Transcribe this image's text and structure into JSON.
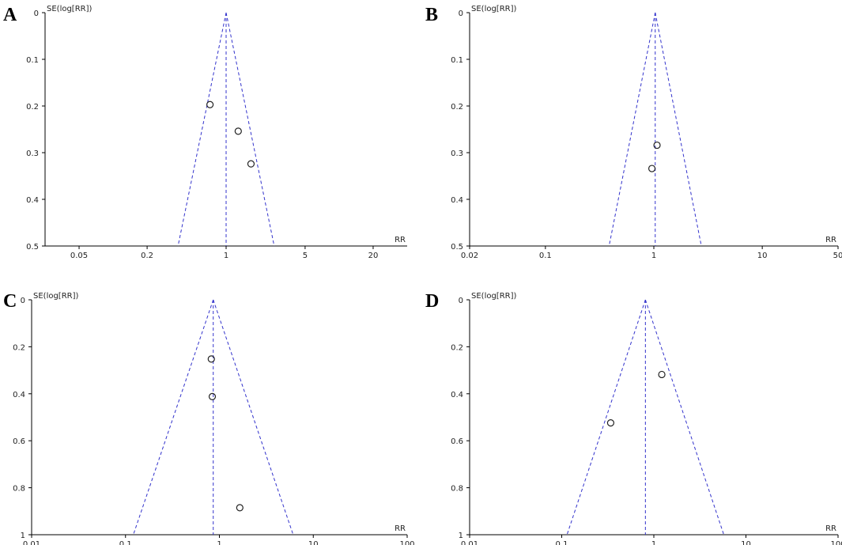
{
  "chart_data": [
    {
      "type": "scatter",
      "panel": "A",
      "ylabel": "SE(log[RR])",
      "xlabel": "RR",
      "x_scale": "log",
      "xlim": [
        0.025,
        40
      ],
      "ylim": [
        0,
        0.5
      ],
      "y_reversed": true,
      "x_ticks": [
        "0.05",
        "0.2",
        "1",
        "5",
        "20"
      ],
      "y_ticks": [
        "0",
        "0.1",
        "0.2",
        "0.3",
        "0.4",
        "0.5"
      ],
      "pooled_rr": 1.0,
      "points": [
        {
          "x": 0.72,
          "y": 0.197
        },
        {
          "x": 1.28,
          "y": 0.254
        },
        {
          "x": 1.66,
          "y": 0.324
        }
      ],
      "line_color": "#3333cc"
    },
    {
      "type": "scatter",
      "panel": "B",
      "ylabel": "SE(log[RR])",
      "xlabel": "RR",
      "x_scale": "log",
      "xlim": [
        0.02,
        50
      ],
      "ylim": [
        0,
        0.5
      ],
      "y_reversed": true,
      "x_ticks": [
        "0.02",
        "0.1",
        "1",
        "10",
        "50"
      ],
      "y_ticks": [
        "0",
        "0.1",
        "0.2",
        "0.3",
        "0.4",
        "0.5"
      ],
      "pooled_rr": 1.03,
      "points": [
        {
          "x": 1.07,
          "y": 0.284
        },
        {
          "x": 0.96,
          "y": 0.334
        }
      ],
      "line_color": "#3333cc"
    },
    {
      "type": "scatter",
      "panel": "C",
      "ylabel": "SE(log[RR])",
      "xlabel": "RR",
      "x_scale": "log",
      "xlim": [
        0.01,
        100
      ],
      "ylim": [
        0,
        1
      ],
      "y_reversed": true,
      "x_ticks": [
        "0.01",
        "0.1",
        "1",
        "10",
        "100"
      ],
      "y_ticks": [
        "0",
        "0.2",
        "0.4",
        "0.6",
        "0.8",
        "1"
      ],
      "pooled_rr": 0.86,
      "points": [
        {
          "x": 0.82,
          "y": 0.252
        },
        {
          "x": 0.84,
          "y": 0.412
        },
        {
          "x": 1.65,
          "y": 0.885
        }
      ],
      "line_color": "#3333cc"
    },
    {
      "type": "scatter",
      "panel": "D",
      "ylabel": "SE(log[RR])",
      "xlabel": "RR",
      "x_scale": "log",
      "xlim": [
        0.01,
        100
      ],
      "ylim": [
        0,
        1
      ],
      "y_reversed": true,
      "x_ticks": [
        "0.01",
        "0.1",
        "1",
        "10",
        "100"
      ],
      "y_ticks": [
        "0",
        "0.2",
        "0.4",
        "0.6",
        "0.8",
        "1"
      ],
      "pooled_rr": 0.81,
      "points": [
        {
          "x": 1.22,
          "y": 0.318
        },
        {
          "x": 0.34,
          "y": 0.524
        }
      ],
      "line_color": "#3333cc"
    }
  ]
}
